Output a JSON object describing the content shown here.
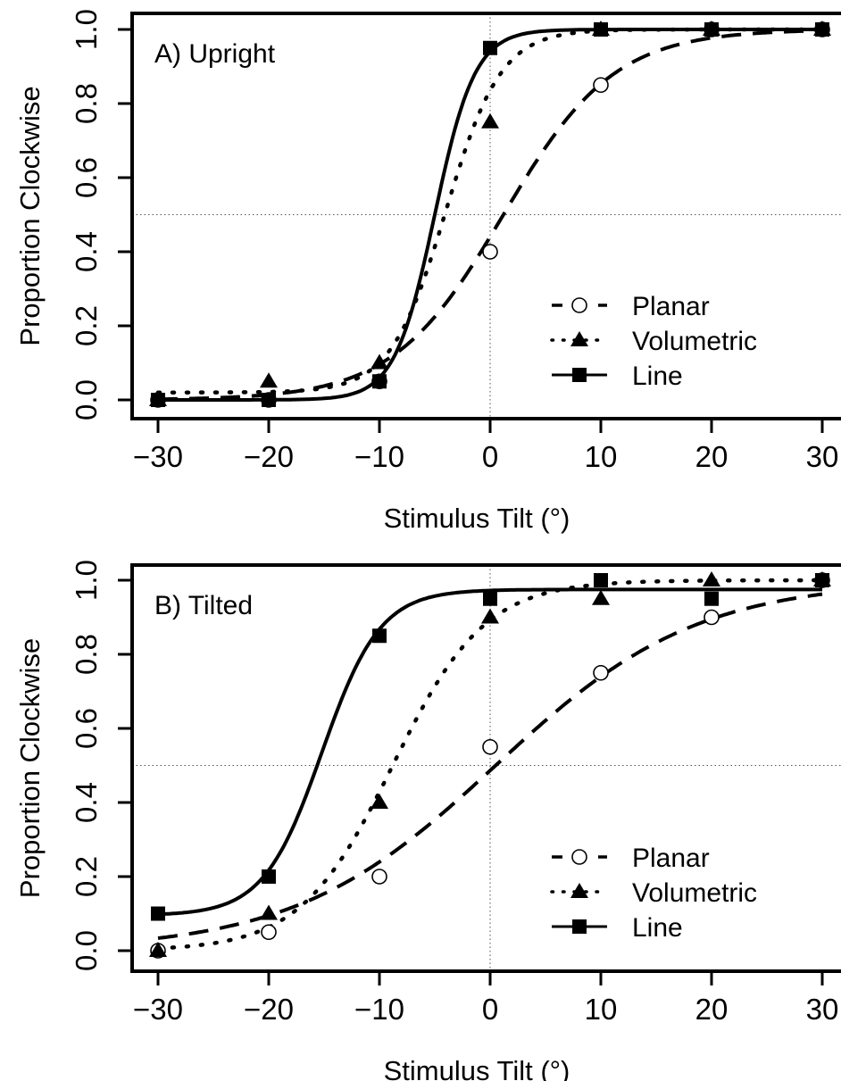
{
  "chart_data": [
    {
      "type": "line",
      "panel_label": "A) Upright",
      "xlabel": "Stimulus Tilt (°)",
      "ylabel": "Proportion Clockwise",
      "xlim": [
        -30,
        30
      ],
      "ylim": [
        0,
        1
      ],
      "x_ticks": [
        -30,
        -20,
        -10,
        0,
        10,
        20,
        30
      ],
      "x_tick_labels": [
        "−30",
        "−20",
        "−10",
        "0",
        "10",
        "20",
        "30"
      ],
      "y_ticks": [
        0,
        0.2,
        0.4,
        0.6,
        0.8,
        1.0
      ],
      "y_tick_labels": [
        "0.0",
        "0.2",
        "0.4",
        "0.6",
        "0.8",
        "1.0"
      ],
      "reference_lines": {
        "x": 0,
        "y": 0.5
      },
      "legend_position": "bottom-right",
      "x": [
        -30,
        -20,
        -10,
        0,
        10,
        20,
        30
      ],
      "series": [
        {
          "name": "Planar",
          "marker": "open-circle",
          "line_style": "dashed",
          "values": [
            0.0,
            0.0,
            0.05,
            0.4,
            0.85,
            1.0,
            1.0
          ],
          "fit": {
            "lower": 0.0,
            "upper": 1.0,
            "mu": 1.2,
            "slope": 0.2
          }
        },
        {
          "name": "Volumetric",
          "marker": "filled-triangle",
          "line_style": "dotted",
          "values": [
            0.0,
            0.05,
            0.1,
            0.75,
            1.0,
            1.0,
            1.0
          ],
          "fit": {
            "lower": 0.02,
            "upper": 1.0,
            "mu": -4.0,
            "slope": 0.4
          }
        },
        {
          "name": "Line",
          "marker": "filled-square",
          "line_style": "solid",
          "values": [
            0.0,
            0.0,
            0.05,
            0.95,
            1.0,
            1.0,
            1.0
          ],
          "fit": {
            "lower": 0.0,
            "upper": 1.0,
            "mu": -5.0,
            "slope": 0.55
          }
        }
      ]
    },
    {
      "type": "line",
      "panel_label": "B) Tilted",
      "xlabel": "Stimulus Tilt (°)",
      "ylabel": "Proportion Clockwise",
      "xlim": [
        -30,
        30
      ],
      "ylim": [
        0,
        1
      ],
      "x_ticks": [
        -30,
        -20,
        -10,
        0,
        10,
        20,
        30
      ],
      "x_tick_labels": [
        "−30",
        "−20",
        "−10",
        "0",
        "10",
        "20",
        "30"
      ],
      "y_ticks": [
        0,
        0.2,
        0.4,
        0.6,
        0.8,
        1.0
      ],
      "y_tick_labels": [
        "0.0",
        "0.2",
        "0.4",
        "0.6",
        "0.8",
        "1.0"
      ],
      "reference_lines": {
        "x": 0,
        "y": 0.5
      },
      "legend_position": "bottom-right",
      "x": [
        -30,
        -20,
        -10,
        0,
        10,
        20,
        30
      ],
      "series": [
        {
          "name": "Planar",
          "marker": "open-circle",
          "line_style": "dashed",
          "values": [
            0.0,
            0.05,
            0.2,
            0.55,
            0.75,
            0.9,
            1.0
          ],
          "fit": {
            "lower": 0.0,
            "upper": 1.0,
            "mu": 0.5,
            "slope": 0.11
          }
        },
        {
          "name": "Volumetric",
          "marker": "filled-triangle",
          "line_style": "dotted",
          "values": [
            0.0,
            0.1,
            0.4,
            0.9,
            0.95,
            1.0,
            1.0
          ],
          "fit": {
            "lower": 0.0,
            "upper": 1.0,
            "mu": -8.8,
            "slope": 0.24
          }
        },
        {
          "name": "Line",
          "marker": "filled-square",
          "line_style": "solid",
          "values": [
            0.1,
            0.2,
            0.85,
            0.95,
            1.0,
            0.95,
            1.0
          ],
          "fit": {
            "lower": 0.095,
            "upper": 0.975,
            "mu": -15.2,
            "slope": 0.38
          }
        }
      ]
    }
  ]
}
